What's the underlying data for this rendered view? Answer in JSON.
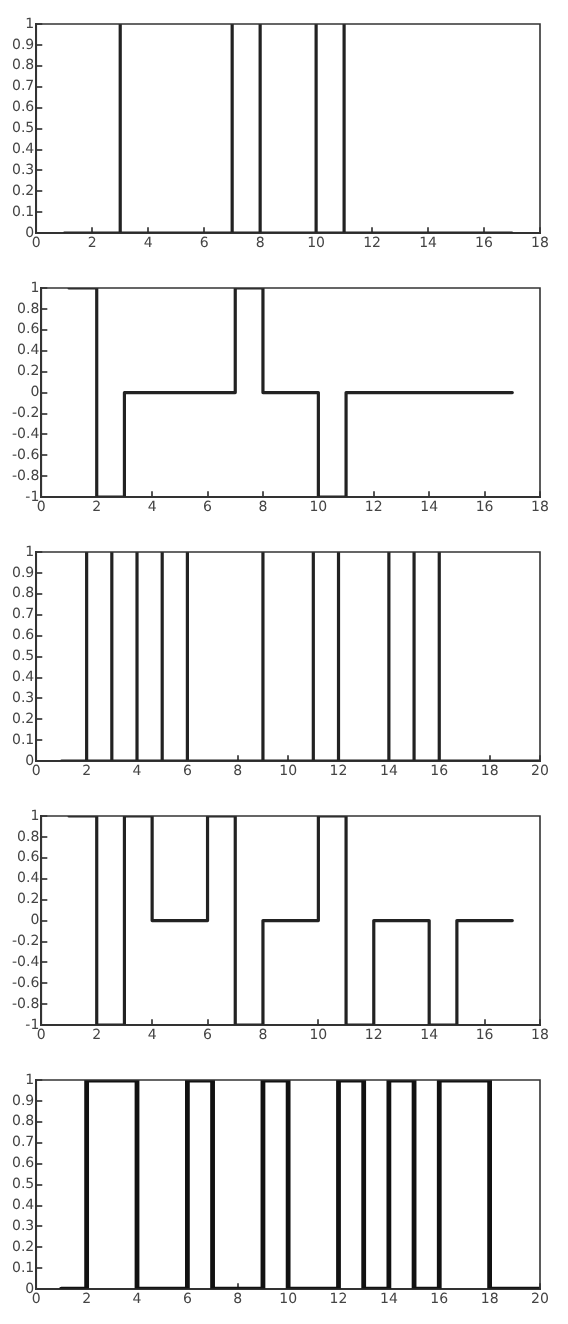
{
  "chart_data": [
    {
      "type": "line",
      "series": [
        {
          "color": "#222222",
          "x": [
            1,
            3,
            3,
            3,
            7,
            7,
            7,
            8,
            8,
            8,
            10,
            10,
            10,
            11,
            11,
            11,
            17
          ],
          "values": [
            0,
            0,
            1,
            0,
            0,
            1,
            0,
            0,
            1,
            0,
            0,
            1,
            0,
            0,
            1,
            0,
            0
          ]
        }
      ],
      "xlim": [
        0,
        18
      ],
      "xticks": [
        0,
        2,
        4,
        6,
        8,
        10,
        12,
        14,
        16,
        18
      ],
      "ylim": [
        0,
        1
      ],
      "yticks": [
        0,
        0.1,
        0.2,
        0.3,
        0.4,
        0.5,
        0.6,
        0.7,
        0.8,
        0.9,
        1
      ],
      "grid": false,
      "legend": false
    },
    {
      "type": "line",
      "series": [
        {
          "color": "#222222",
          "x": [
            1,
            2,
            2,
            3,
            3,
            7,
            7,
            8,
            8,
            10,
            10,
            11,
            11,
            17
          ],
          "values": [
            1,
            1,
            -1,
            -1,
            0,
            0,
            1,
            1,
            0,
            0,
            -1,
            -1,
            0,
            0
          ]
        }
      ],
      "xlim": [
        0,
        18
      ],
      "xticks": [
        0,
        2,
        4,
        6,
        8,
        10,
        12,
        14,
        16,
        18
      ],
      "ylim": [
        -1,
        1
      ],
      "yticks": [
        -1,
        -0.8,
        -0.6,
        -0.4,
        -0.2,
        0,
        0.2,
        0.4,
        0.6,
        0.8,
        1
      ],
      "grid": false,
      "legend": false
    },
    {
      "type": "line",
      "series": [
        {
          "color": "#222222",
          "x": [
            1,
            2,
            2,
            2,
            3,
            3,
            3,
            4,
            4,
            4,
            5,
            5,
            5,
            6,
            6,
            6,
            9,
            9,
            9,
            11,
            11,
            11,
            12,
            12,
            12,
            14,
            14,
            14,
            15,
            15,
            15,
            16,
            16,
            16,
            20
          ],
          "values": [
            0,
            0,
            1,
            0,
            0,
            1,
            0,
            0,
            1,
            0,
            0,
            1,
            0,
            0,
            1,
            0,
            0,
            1,
            0,
            0,
            1,
            0,
            0,
            1,
            0,
            0,
            1,
            0,
            0,
            1,
            0,
            0,
            1,
            0,
            0
          ]
        }
      ],
      "xlim": [
        0,
        20
      ],
      "xticks": [
        0,
        2,
        4,
        6,
        8,
        10,
        12,
        14,
        16,
        18,
        20
      ],
      "ylim": [
        0,
        1
      ],
      "yticks": [
        0,
        0.1,
        0.2,
        0.3,
        0.4,
        0.5,
        0.6,
        0.7,
        0.8,
        0.9,
        1
      ],
      "grid": false,
      "legend": false
    },
    {
      "type": "line",
      "series": [
        {
          "color": "#222222",
          "x": [
            1,
            2,
            2,
            3,
            3,
            4,
            4,
            6,
            6,
            7,
            7,
            8,
            8,
            10,
            10,
            11,
            11,
            12,
            12,
            14,
            14,
            15,
            15,
            17
          ],
          "values": [
            1,
            1,
            -1,
            -1,
            1,
            1,
            0,
            0,
            1,
            1,
            -1,
            -1,
            0,
            0,
            1,
            1,
            -1,
            -1,
            0,
            0,
            -1,
            -1,
            0,
            0
          ]
        }
      ],
      "xlim": [
        0,
        18
      ],
      "xticks": [
        0,
        2,
        4,
        6,
        8,
        10,
        12,
        14,
        16,
        18
      ],
      "ylim": [
        -1,
        1
      ],
      "yticks": [
        -1,
        -0.8,
        -0.6,
        -0.4,
        -0.2,
        0,
        0.2,
        0.4,
        0.6,
        0.8,
        1
      ],
      "grid": false,
      "legend": false
    },
    {
      "type": "line",
      "series": [
        {
          "color": "#111111",
          "x": [
            1,
            2,
            2,
            4,
            4,
            6,
            6,
            7,
            7,
            9,
            9,
            10,
            10,
            12,
            12,
            13,
            13,
            14,
            14,
            15,
            15,
            16,
            16,
            18,
            18,
            20
          ],
          "values": [
            0,
            0,
            1,
            1,
            0,
            0,
            1,
            1,
            0,
            0,
            1,
            1,
            0,
            0,
            1,
            1,
            0,
            0,
            1,
            1,
            0,
            0,
            1,
            1,
            0,
            0
          ]
        }
      ],
      "xlim": [
        0,
        20
      ],
      "xticks": [
        0,
        2,
        4,
        6,
        8,
        10,
        12,
        14,
        16,
        18,
        20
      ],
      "ylim": [
        0,
        1
      ],
      "yticks": [
        0,
        0.1,
        0.2,
        0.3,
        0.4,
        0.5,
        0.6,
        0.7,
        0.8,
        0.9,
        1
      ],
      "grid": false,
      "legend": false
    }
  ]
}
